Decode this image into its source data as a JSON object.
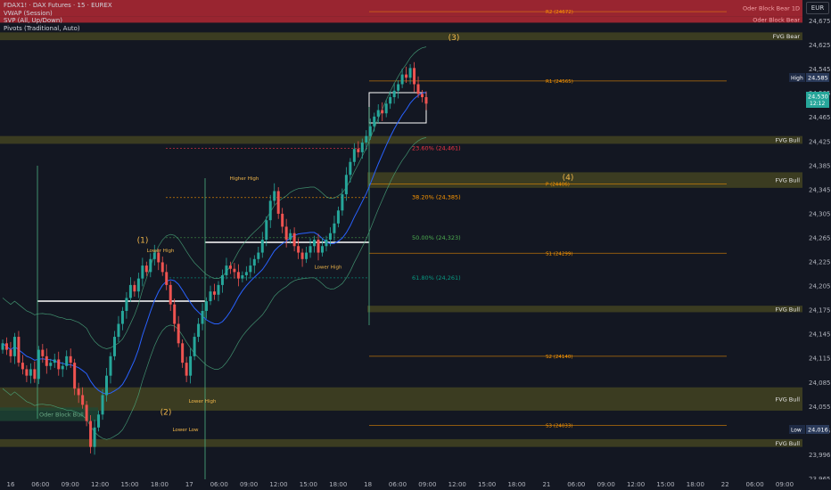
{
  "legend": {
    "symbol": "FDAX1! · DAX Futures · 15 · EUREX",
    "ind1": "VWAP (Session)",
    "ind2": "SVP (All, Up/Down)",
    "ind3": "Pivots (Traditional, Auto)"
  },
  "currency": "EUR",
  "colors": {
    "background": "#131722",
    "bull_candle": "#26a69a",
    "bear_candle": "#ef5350",
    "fvg_zone": "#4a4a22",
    "order_block_bear": "#b22833",
    "order_block_bull": "#1f4a35",
    "fib_23": "#f23645",
    "fib_38": "#ff9800",
    "fib_50": "#4caf50",
    "fib_61": "#089981",
    "pivot": "#ff9800",
    "vwap": "#2962ff",
    "band": "#4caf82"
  },
  "chart_data": {
    "type": "candlestick",
    "title": "FDAX1! · DAX Futures · 15 · EUREX",
    "ylim": [
      23950,
      24690
    ],
    "y_ticks": [
      "24,675",
      "24,625",
      "24,545",
      "24,505",
      "24,465",
      "24,425",
      "24,385",
      "24,345",
      "24,305",
      "24,265",
      "24,225",
      "24,205",
      "24,175",
      "24,145",
      "24,115",
      "24,085",
      "24,055",
      "24,035",
      "23,996",
      "23,965"
    ],
    "x_ticks": [
      "16",
      "06:00",
      "09:00",
      "12:00",
      "15:00",
      "18:00",
      "17",
      "06:00",
      "09:00",
      "12:00",
      "15:00",
      "18:00",
      "18",
      "06:00",
      "09:00",
      "12:00",
      "15:00",
      "18:00",
      "21",
      "06:00",
      "09:00",
      "12:00",
      "15:00",
      "18:00",
      "22",
      "06:00",
      "09:00"
    ],
    "price_badges": [
      {
        "label": "High",
        "value": "24,585"
      },
      {
        "label": "",
        "value": "24,530",
        "sub": "12:12"
      },
      {
        "label": "Low",
        "value": "24,016"
      }
    ],
    "zones": [
      {
        "label": "Oder Block Bear 1D",
        "kind": "bear",
        "top": 24690,
        "bottom": 24665
      },
      {
        "label": "Oder Block Bear",
        "kind": "bear",
        "top": 24665,
        "bottom": 24655
      },
      {
        "label": "FVG Bear",
        "kind": "fvg",
        "top": 24640,
        "bottom": 24628
      },
      {
        "label": "FVG Bull",
        "kind": "fvg",
        "top": 24480,
        "bottom": 24468
      },
      {
        "label": "FVG Bull",
        "kind": "fvg",
        "top": 24424,
        "bottom": 24400
      },
      {
        "label": "FVG Bull",
        "kind": "fvg",
        "top": 24218,
        "bottom": 24208
      },
      {
        "label": "FVG Bull",
        "kind": "fvg",
        "top": 24092,
        "bottom": 24056
      },
      {
        "label": "FVG Bull",
        "kind": "fvg",
        "top": 24012,
        "bottom": 24000
      },
      {
        "label": "Oder Block Bull",
        "kind": "obbull",
        "top": 24061,
        "bottom": 24040
      }
    ],
    "pivots": [
      {
        "label": "R2 (24672)",
        "value": 24672
      },
      {
        "label": "R1 (24565)",
        "value": 24565
      },
      {
        "label": "P (24406)",
        "value": 24406
      },
      {
        "label": "S1 (24299)",
        "value": 24299
      },
      {
        "label": "S2 (24140)",
        "value": 24140
      },
      {
        "label": "S3 (24033)",
        "value": 24033
      }
    ],
    "fibs": [
      {
        "label": "23.60% (24,461)",
        "value": 24461,
        "key": "fib_23"
      },
      {
        "label": "38.20% (24,385)",
        "value": 24385,
        "key": "fib_38"
      },
      {
        "label": "50.00% (24,323)",
        "value": 24323,
        "key": "fib_50"
      },
      {
        "label": "61.80% (24,261)",
        "value": 24261,
        "key": "fib_61"
      }
    ],
    "annotations": [
      {
        "text": "(1)",
        "x": 160,
        "y": 24315
      },
      {
        "text": "(2)",
        "x": 186,
        "y": 24050
      },
      {
        "text": "(3)",
        "x": 509,
        "y": 24628
      },
      {
        "text": "(4)",
        "x": 637,
        "y": 24412
      },
      {
        "text": "Lower High",
        "x": 180,
        "y": 24301
      },
      {
        "text": "Higher High",
        "x": 274,
        "y": 24412
      },
      {
        "text": "Lower High",
        "x": 368,
        "y": 24275
      },
      {
        "text": "Lower High",
        "x": 227,
        "y": 24068
      },
      {
        "text": "Lower Low",
        "x": 208,
        "y": 24024
      }
    ],
    "closes": [
      24160,
      24150,
      24140,
      24170,
      24130,
      24120,
      24110,
      24120,
      24105,
      24150,
      24140,
      24125,
      24130,
      24135,
      24120,
      24125,
      24140,
      24130,
      24090,
      24080,
      24065,
      24040,
      24000,
      24030,
      24050,
      24080,
      24110,
      24140,
      24170,
      24190,
      24210,
      24230,
      24250,
      24240,
      24260,
      24280,
      24270,
      24290,
      24300,
      24285,
      24270,
      24250,
      24220,
      24190,
      24160,
      24130,
      24110,
      24140,
      24170,
      24190,
      24210,
      24225,
      24240,
      24235,
      24250,
      24265,
      24280,
      24275,
      24270,
      24260,
      24265,
      24270,
      24280,
      24290,
      24300,
      24320,
      24350,
      24380,
      24395,
      24360,
      24340,
      24320,
      24330,
      24310,
      24300,
      24290,
      24300,
      24310,
      24320,
      24300,
      24310,
      24320,
      24330,
      24345,
      24365,
      24390,
      24420,
      24440,
      24460,
      24455,
      24470,
      24480,
      24495,
      24510,
      24520,
      24515,
      24530,
      24540,
      24550,
      24560,
      24575,
      24570,
      24585,
      24560,
      24545,
      24540,
      24530
    ]
  }
}
